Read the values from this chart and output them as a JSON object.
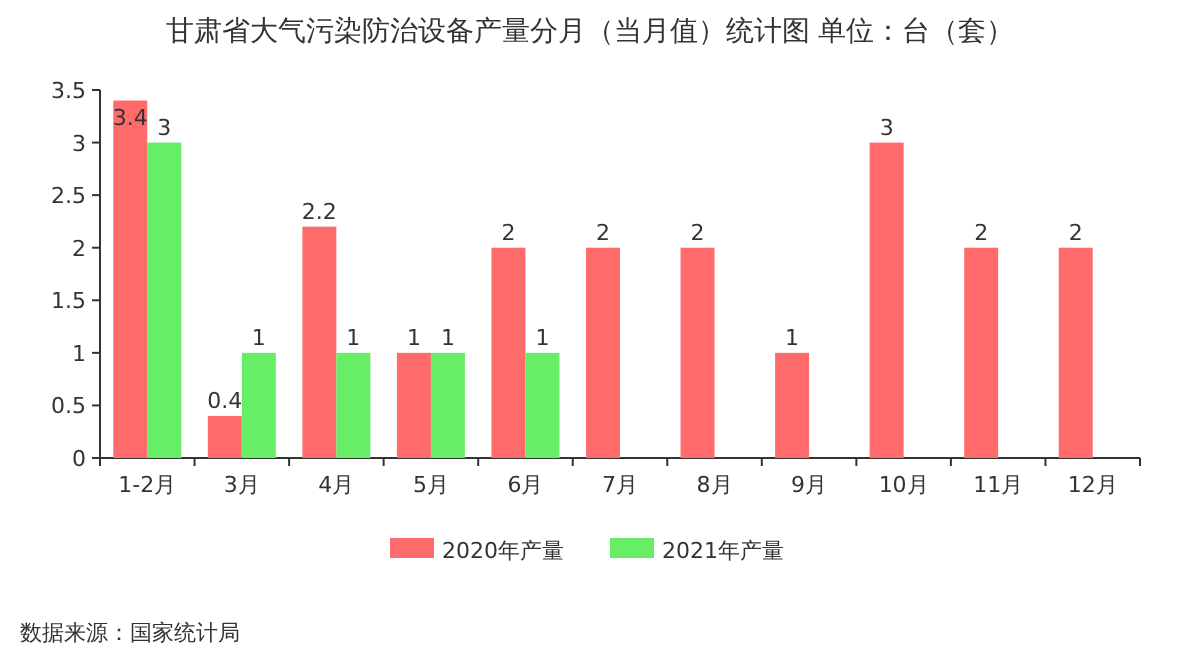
{
  "chart_data": {
    "type": "bar",
    "title": "甘肃省大气污染防治设备产量分月（当月值）统计图 单位：台（套）",
    "categories": [
      "1-2月",
      "3月",
      "4月",
      "5月",
      "6月",
      "7月",
      "8月",
      "9月",
      "10月",
      "11月",
      "12月"
    ],
    "series": [
      {
        "name": "2020年产量",
        "color": "#ff6b6b",
        "values": [
          3.4,
          0.4,
          2.2,
          1,
          2,
          2,
          2,
          1,
          3,
          2,
          2
        ]
      },
      {
        "name": "2021年产量",
        "color": "#66ee66",
        "values": [
          3,
          1,
          1,
          1,
          1,
          null,
          null,
          null,
          null,
          null,
          null
        ]
      }
    ],
    "ylim": [
      0,
      3.5
    ],
    "yticks": [
      0,
      0.5,
      1,
      1.5,
      2,
      2.5,
      3,
      3.5
    ],
    "data_labels": true,
    "legend": "bottom",
    "annotations": [
      "数据来源：国家统计局"
    ]
  }
}
